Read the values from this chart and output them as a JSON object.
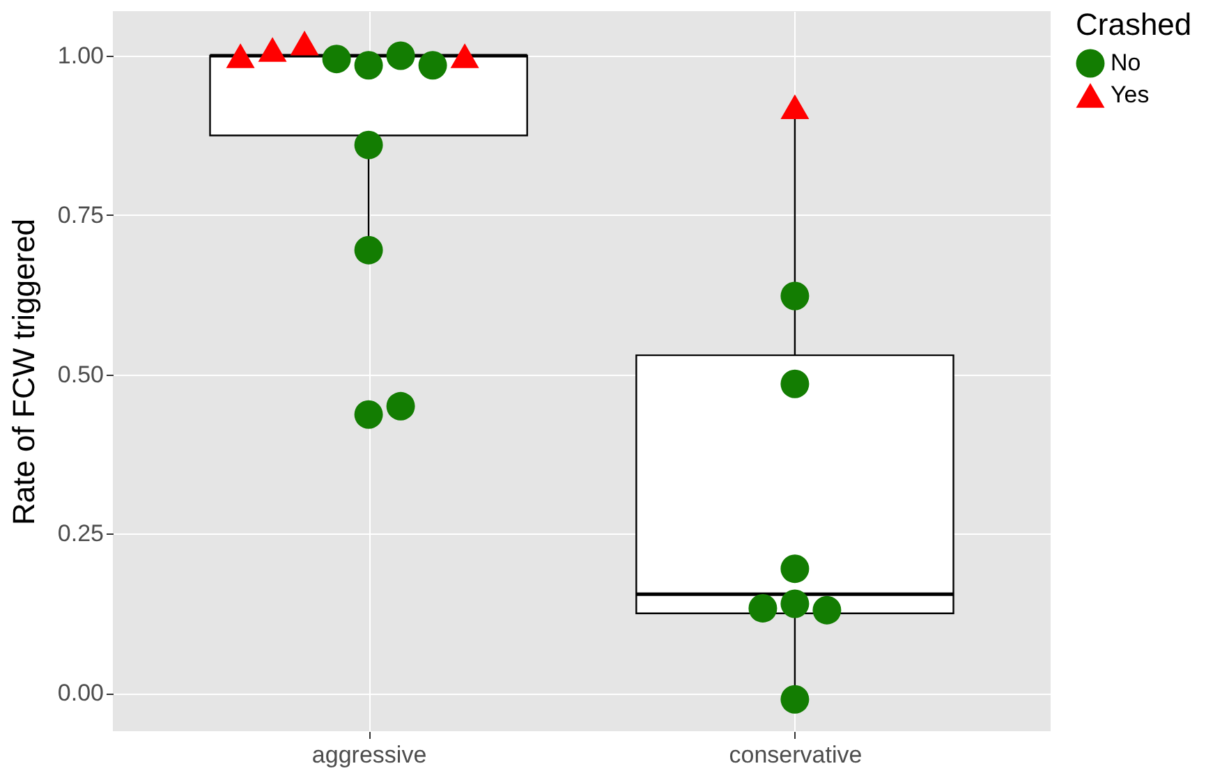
{
  "chart_data": {
    "type": "box",
    "ylabel": "Rate of FCW triggered",
    "legend_title": "Crashed",
    "categories": [
      "aggressive",
      "conservative"
    ],
    "boxes": [
      {
        "low": 0.69,
        "q1": 0.875,
        "median": 1.0,
        "q3": 1.0,
        "high": 1.0
      },
      {
        "low": 0.0,
        "q1": 0.125,
        "median": 0.155,
        "q3": 0.53,
        "high": 0.92
      }
    ],
    "series": [
      {
        "name": "No",
        "type": "scatter",
        "marker": "circle",
        "color": "#137d02",
        "x": [
          "aggressive",
          "aggressive",
          "aggressive",
          "aggressive",
          "aggressive",
          "aggressive",
          "aggressive",
          "aggressive",
          "conservative",
          "conservative",
          "conservative",
          "conservative",
          "conservative",
          "conservative",
          "conservative"
        ],
        "values": [
          0.985,
          0.985,
          1.0,
          0.995,
          0.86,
          0.695,
          0.437,
          0.45,
          0.623,
          0.485,
          0.195,
          0.14,
          0.13,
          0.133,
          -0.01
        ]
      },
      {
        "name": "Yes",
        "type": "scatter",
        "marker": "triangle",
        "color": "#ff0000",
        "x": [
          "aggressive",
          "aggressive",
          "aggressive",
          "aggressive",
          "conservative"
        ],
        "values": [
          1.02,
          1.0,
          1.01,
          1.0,
          0.92
        ]
      }
    ],
    "ylim": [
      -0.06,
      1.07
    ],
    "yticks": [
      {
        "value": 0,
        "label": "0.00"
      },
      {
        "value": 0.25,
        "label": "0.25"
      },
      {
        "value": 0.5,
        "label": "0.50"
      },
      {
        "value": 0.75,
        "label": "0.75"
      },
      {
        "value": 1,
        "label": "1.00"
      }
    ],
    "grid": true,
    "legend": "right"
  }
}
